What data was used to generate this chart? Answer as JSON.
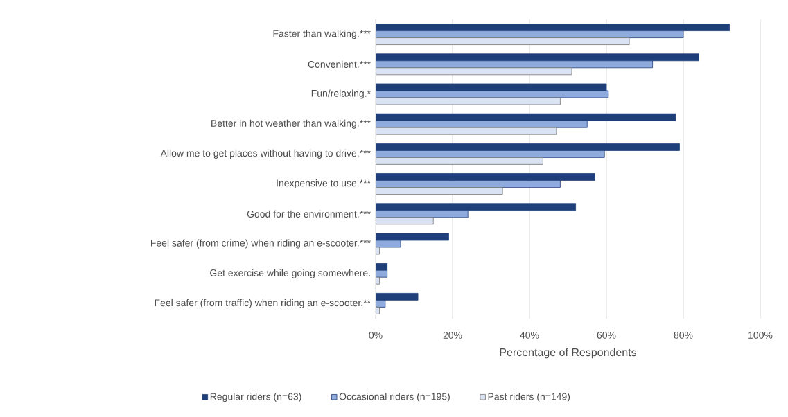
{
  "chart_data": {
    "type": "bar",
    "orientation": "horizontal",
    "xlabel": "Percentage of Respondents",
    "categories": [
      "Faster than walking.***",
      "Convenient.***",
      "Fun/relaxing.*",
      "Better in hot weather than walking.***",
      "Allow me to get places without having to drive.***",
      "Inexpensive to use.***",
      "Good for the environment.***",
      "Feel safer (from crime) when riding an e-scooter.***",
      "Get exercise while going somewhere.",
      "Feel safer (from traffic) when riding an e-scooter.**"
    ],
    "series": [
      {
        "name": "Regular riders (n=63)",
        "color": "#1f3f7a",
        "values": [
          92,
          84,
          60,
          78,
          79,
          57,
          52,
          19,
          3,
          11
        ]
      },
      {
        "name": "Occasional riders (n=195)",
        "color": "#8faadc",
        "values": [
          80,
          72,
          60.5,
          55,
          59.5,
          48,
          24,
          6.5,
          3,
          2.5
        ]
      },
      {
        "name": "Past riders (n=149)",
        "color": "#dae3f3",
        "values": [
          66,
          51,
          48,
          47,
          43.5,
          33,
          15,
          1,
          1,
          1
        ]
      }
    ],
    "xlim": [
      0,
      100
    ],
    "xticks": [
      {
        "value": 0,
        "label": "0%"
      },
      {
        "value": 20,
        "label": "20%"
      },
      {
        "value": 40,
        "label": "40%"
      },
      {
        "value": 60,
        "label": "60%"
      },
      {
        "value": 80,
        "label": "80%"
      },
      {
        "value": 100,
        "label": "100%"
      }
    ],
    "grid": "x",
    "legend": "bottom"
  }
}
